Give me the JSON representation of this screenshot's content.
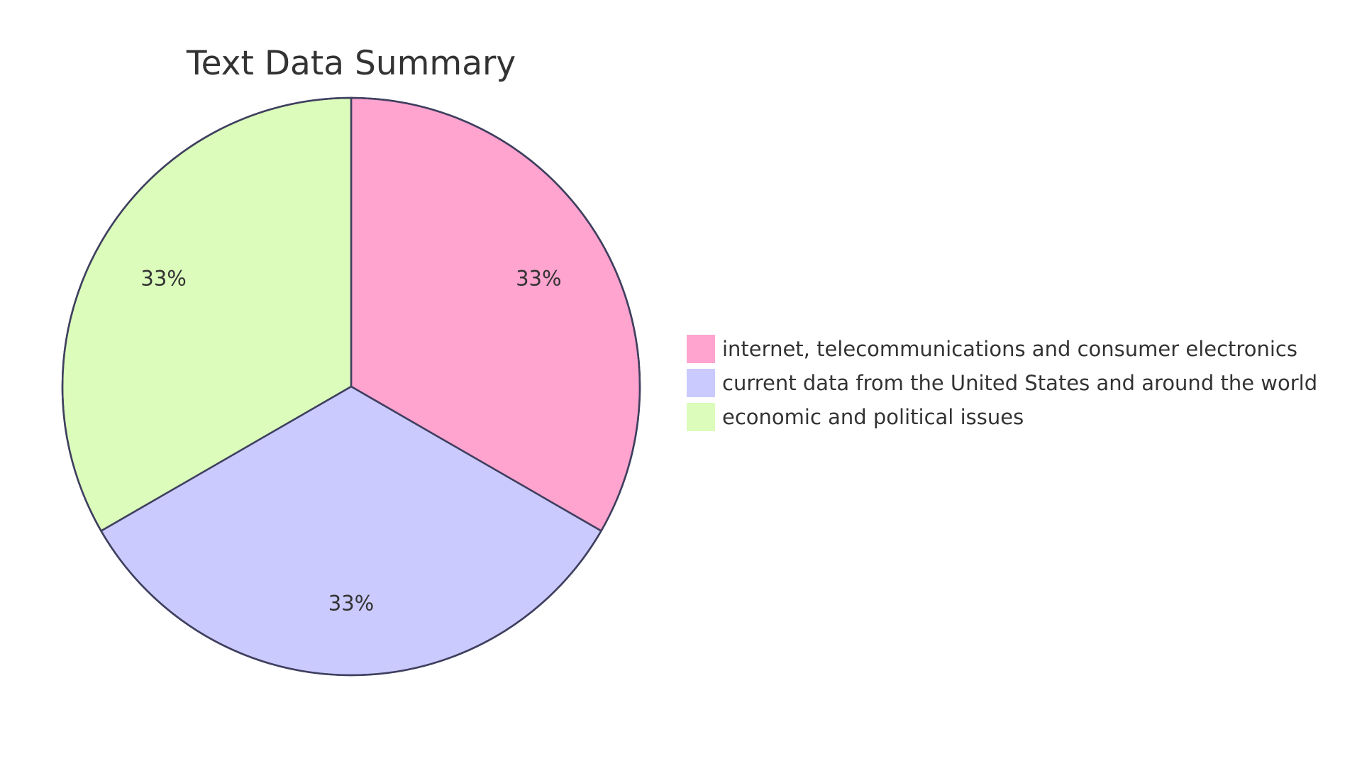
{
  "chart_data": {
    "type": "pie",
    "title": "Text Data Summary",
    "slices": [
      {
        "label": "internet, telecommunications and consumer electronics",
        "value": 1,
        "percent_label": "33%",
        "color": "#ffa3cf"
      },
      {
        "label": "current data from the United States and around the world",
        "value": 1,
        "percent_label": "33%",
        "color": "#cacafe"
      },
      {
        "label": "economic and political issues",
        "value": 1,
        "percent_label": "33%",
        "color": "#dbfcbb"
      }
    ],
    "legend_position": "right"
  }
}
